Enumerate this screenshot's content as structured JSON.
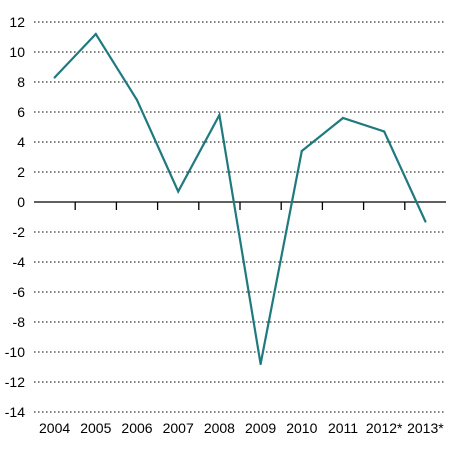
{
  "chart_data": {
    "type": "line",
    "title": "",
    "xlabel": "",
    "ylabel": "",
    "categories": [
      "2004",
      "2005",
      "2006",
      "2007",
      "2008",
      "2009",
      "2010",
      "2011",
      "2012*",
      "2013*"
    ],
    "series": [
      {
        "values": [
          8.3,
          11.2,
          6.8,
          0.7,
          5.8,
          -10.8,
          3.4,
          5.6,
          4.7,
          -1.3
        ]
      }
    ],
    "ylim": [
      -14,
      12
    ],
    "yticks": [
      12,
      10,
      8,
      6,
      4,
      2,
      0,
      -2,
      -4,
      -6,
      -8,
      -10,
      -12,
      -14
    ],
    "grid": "horizontal dotted",
    "legend": "none",
    "colors": {
      "line": "#1f7a80",
      "grid": "#000000",
      "axis": "#000000"
    }
  }
}
